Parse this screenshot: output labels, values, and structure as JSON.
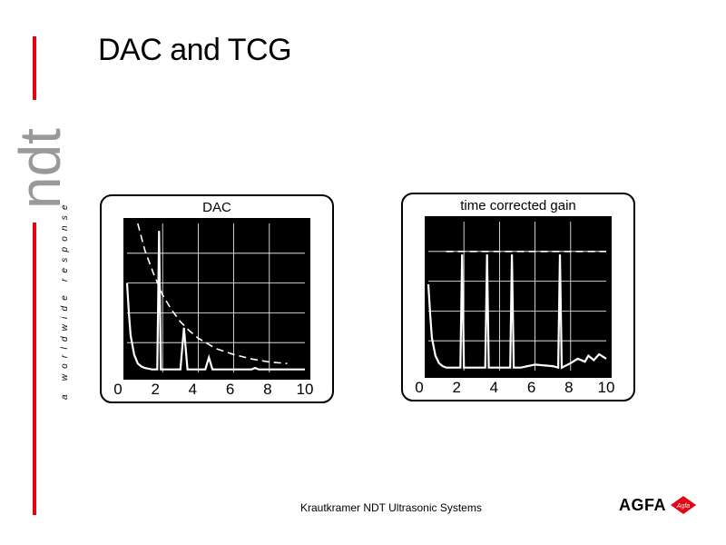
{
  "slide": {
    "title": "DAC and TCG",
    "footer": "Krautkramer NDT Ultrasonic Systems"
  },
  "branding": {
    "logo_text": "ndt",
    "slogan": "a worldwide response",
    "company": "AGFA",
    "company_badge_text": "Agfa",
    "accent_color": "#e30613"
  },
  "chart_data": [
    {
      "type": "line",
      "title": "DAC",
      "xlabel": "",
      "ylabel": "",
      "xlim": [
        0,
        10
      ],
      "ylim": [
        0,
        100
      ],
      "x_ticks": [
        "0",
        "2",
        "4",
        "6",
        "8",
        "10"
      ],
      "grid": true,
      "series": [
        {
          "values_x": [
            0,
            0.1,
            0.2,
            0.4,
            0.6,
            0.8,
            1.0,
            1.4,
            1.7,
            1.8,
            1.9,
            2.0,
            2.2,
            3.0,
            3.2,
            3.4,
            3.6,
            4.0,
            4.4,
            4.6,
            4.8,
            5.2,
            6.0,
            7.0,
            7.2,
            7.4,
            8.0,
            9.0,
            10.0
          ],
          "values_y": [
            60,
            40,
            25,
            12,
            6,
            4,
            3,
            2,
            2,
            95,
            2,
            2,
            2,
            2,
            30,
            2,
            2,
            2,
            2,
            10,
            2,
            2,
            2,
            2,
            3,
            2,
            2,
            2,
            2
          ]
        },
        {
          "values_x": [
            0.6,
            1.0,
            1.5,
            2.0,
            2.5,
            3.0,
            3.5,
            4.0,
            5.0,
            6.0,
            7.0,
            8.0,
            9.0
          ],
          "values_y": [
            100,
            82,
            66,
            52,
            42,
            34,
            28,
            23,
            16,
            12,
            9,
            7,
            6
          ]
        }
      ]
    },
    {
      "type": "line",
      "title": "time corrected gain",
      "xlabel": "",
      "ylabel": "",
      "xlim": [
        0,
        10
      ],
      "ylim": [
        0,
        100
      ],
      "x_ticks": [
        "0",
        "2",
        "4",
        "6",
        "8",
        "10"
      ],
      "grid": true,
      "series": [
        {
          "values_x": [
            0,
            0.1,
            0.2,
            0.4,
            0.6,
            0.8,
            1.0,
            1.5,
            1.8,
            1.9,
            2.0,
            2.2,
            3.0,
            3.2,
            3.3,
            3.4,
            3.6,
            4.4,
            4.6,
            4.7,
            4.8,
            5.2,
            6.0,
            7.0,
            7.3,
            7.4,
            7.5,
            8.0,
            8.4,
            8.8,
            9.0,
            9.3,
            9.6,
            10.0
          ],
          "values_y": [
            58,
            38,
            22,
            10,
            5,
            3,
            2,
            2,
            2,
            78,
            2,
            2,
            2,
            2,
            78,
            2,
            2,
            2,
            2,
            78,
            2,
            2,
            4,
            3,
            2,
            78,
            2,
            5,
            8,
            6,
            10,
            7,
            11,
            8
          ]
        },
        {
          "values_x": [
            1.0,
            10.0
          ],
          "values_y": [
            80,
            80
          ]
        }
      ]
    }
  ]
}
